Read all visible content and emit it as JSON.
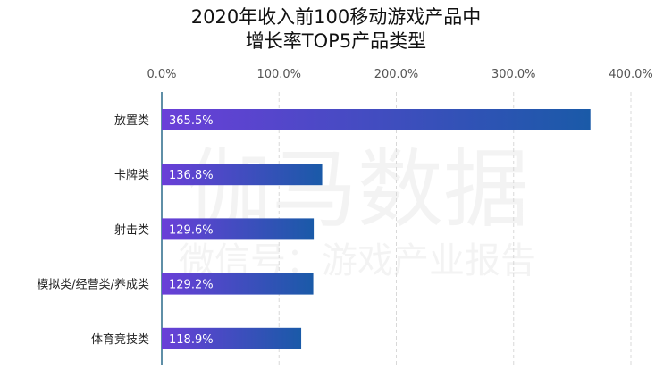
{
  "chart_data": {
    "type": "bar",
    "orientation": "horizontal",
    "title_lines": [
      "2020年收入前100移动游戏产品中",
      "增长率TOP5产品类型"
    ],
    "categories": [
      "放置类",
      "卡牌类",
      "射击类",
      "模拟类/经营类/养成类",
      "体育竞技类"
    ],
    "values": [
      365.5,
      136.8,
      129.6,
      129.2,
      118.9
    ],
    "data_labels": [
      "365.5%",
      "136.8%",
      "129.6%",
      "129.2%",
      "118.9%"
    ],
    "x_ticks": [
      "0.0%",
      "100.0%",
      "200.0%",
      "300.0%",
      "400.0%"
    ],
    "xlim": [
      0,
      400
    ],
    "x_axis_position": "top",
    "grid": "vertical dashed",
    "bar_gradient": [
      "#6a3fd8",
      "#1a5aa8"
    ],
    "watermark": [
      "伽马数据",
      "微信号：游戏产业报告"
    ]
  }
}
